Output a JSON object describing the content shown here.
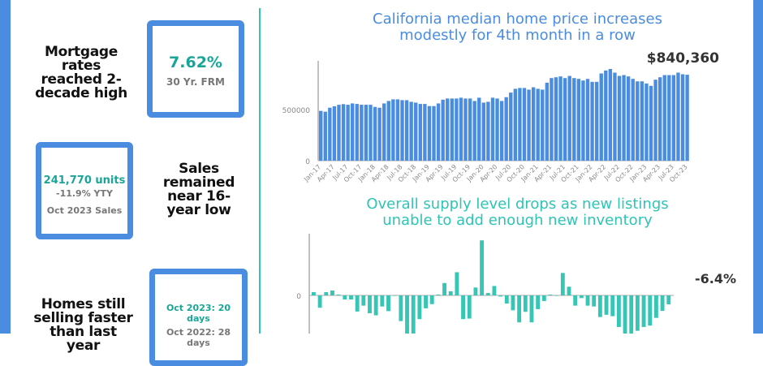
{
  "left": {
    "mortgage": {
      "headline": "Mortgage rates reached 2-decade high",
      "value": "7.62%",
      "label": "30 Yr. FRM"
    },
    "sales": {
      "headline": "Sales remained near 16-year low",
      "value": "241,770 units",
      "change": "-11.9% YTY",
      "label": "Oct 2023 Sales"
    },
    "days": {
      "headline": "Homes still selling faster than last year",
      "current": "Oct 2023: 20 days",
      "previous": "Oct 2022: 28 days"
    }
  },
  "colors": {
    "accent": "#4a8de0",
    "teal": "#2ec4b6"
  },
  "chart_data": [
    {
      "type": "bar",
      "title": "California median home price increases modestly for 4th month in a row",
      "annotation": "$840,360",
      "yticks": [
        "0",
        "500000"
      ],
      "ylim": [
        0,
        900000
      ],
      "xtick_labels": [
        "Jan-17",
        "Apr-17",
        "Jul-17",
        "Oct-17",
        "Jan-18",
        "Apr-18",
        "Jul-18",
        "Oct-18",
        "Jan-19",
        "Apr-19",
        "Jul-19",
        "Oct-19",
        "Jan-20",
        "Apr-20",
        "Jul-20",
        "Oct-20",
        "Jan-21",
        "Apr-21",
        "Jul-21",
        "Oct-21",
        "Jan-22",
        "Apr-22",
        "Jul-22",
        "Oct-22",
        "Jan-23",
        "Apr-23",
        "Jul-23",
        "Oct-23"
      ],
      "values": [
        487000,
        479000,
        518000,
        532000,
        547000,
        553000,
        547000,
        560000,
        555000,
        547000,
        547000,
        547000,
        526000,
        518000,
        560000,
        584000,
        600000,
        600000,
        592000,
        592000,
        576000,
        568000,
        555000,
        555000,
        534000,
        534000,
        560000,
        597000,
        608000,
        608000,
        608000,
        616000,
        608000,
        608000,
        584000,
        616000,
        568000,
        576000,
        616000,
        608000,
        584000,
        621000,
        666000,
        703000,
        711000,
        711000,
        695000,
        718000,
        703000,
        695000,
        763000,
        808000,
        816000,
        824000,
        808000,
        829000,
        808000,
        800000,
        784000,
        800000,
        771000,
        771000,
        853000,
        882000,
        897000,
        861000,
        829000,
        837000,
        824000,
        800000,
        776000,
        776000,
        755000,
        732000,
        792000,
        816000,
        837000,
        837000,
        837000,
        861000,
        845000,
        840360
      ]
    },
    {
      "type": "bar",
      "title": "Overall supply level drops as new listings unable to add enough new inventory",
      "annotation": "-6.4%",
      "yticks": [
        "0"
      ],
      "values": [
        2.3,
        -8.8,
        2.3,
        3.5,
        0.6,
        -2.9,
        -2.9,
        -11.5,
        -7.3,
        -12.7,
        -14.2,
        -7.9,
        -11.2,
        0,
        -18.3,
        -28,
        -28,
        -16.9,
        -9.2,
        -6.2,
        0.6,
        8.8,
        2.9,
        16.5,
        -16.9,
        -16.5,
        5.6,
        39.2,
        1.7,
        6.7,
        -0.8,
        -5.8,
        -10.6,
        -19.2,
        -11.7,
        -19.2,
        -9.8,
        -4.0,
        0.6,
        0,
        16.0,
        6.2,
        -7.3,
        -1.9,
        -7.3,
        -7.9,
        -15.4,
        -13.8,
        -14.8,
        -22.5,
        -28,
        -28,
        -25.2,
        -22.5,
        -21.5,
        -16.0,
        -11.0,
        -6.4
      ]
    }
  ]
}
